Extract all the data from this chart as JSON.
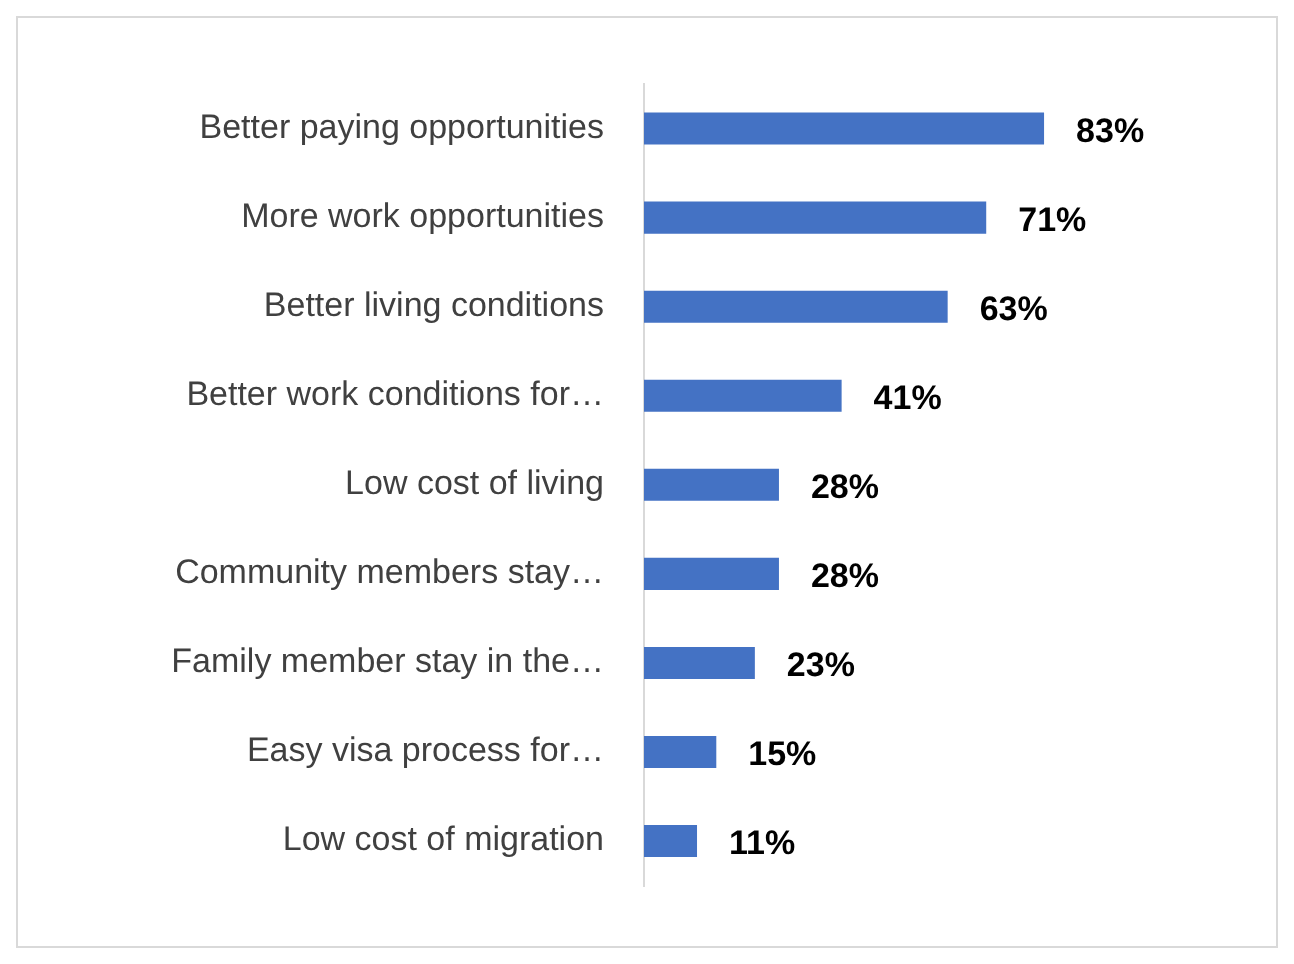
{
  "chart_data": {
    "type": "bar",
    "orientation": "horizontal",
    "categories": [
      "Better paying opportunities",
      "More work opportunities",
      "Better living conditions",
      "Better work conditions for…",
      "Low cost of living",
      "Community members stay…",
      "Family member stay in the…",
      "Easy visa process for…",
      "Low cost of migration"
    ],
    "values": [
      83,
      71,
      63,
      41,
      28,
      28,
      23,
      15,
      11
    ],
    "value_labels": [
      "83%",
      "71%",
      "63%",
      "41%",
      "28%",
      "28%",
      "23%",
      "15%",
      "11%"
    ],
    "color": "#4472c4",
    "tick_labels": "y",
    "grid": false,
    "legend": false
  }
}
